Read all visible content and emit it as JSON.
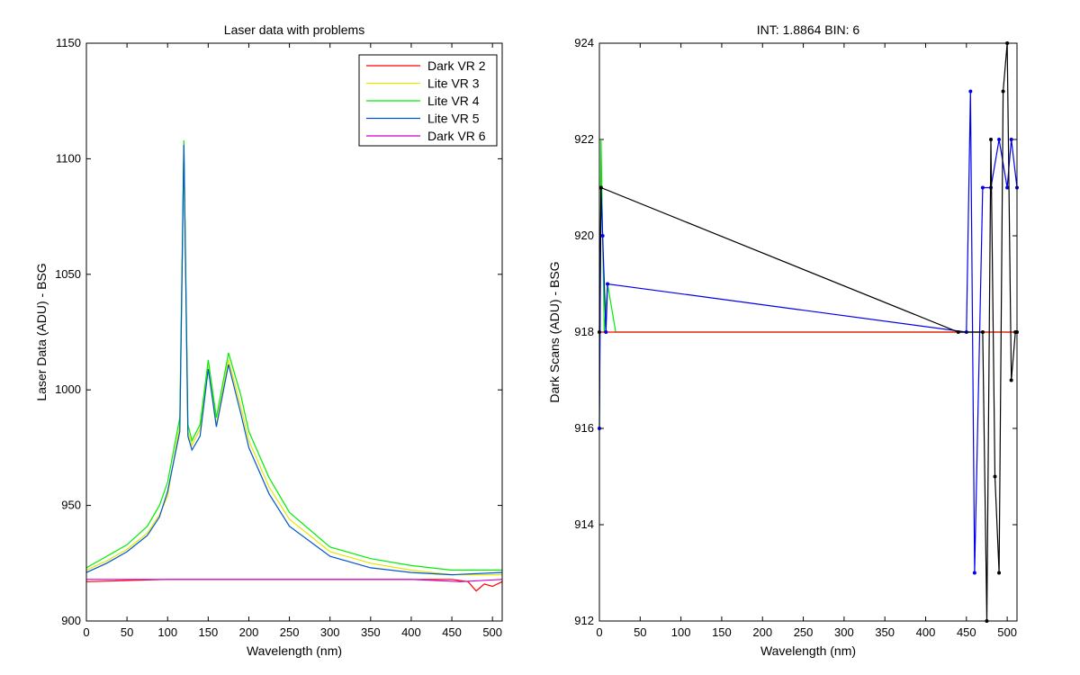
{
  "colors": {
    "red": "#ff0000",
    "yellow": "#e6e600",
    "green": "#00ee00",
    "blue": "#0055cc",
    "magenta": "#cc00cc",
    "dark_blue": "#0000ee",
    "black": "#000000"
  },
  "chart_data": [
    {
      "type": "line",
      "title": "Laser data with problems",
      "xlabel": "Wavelength (nm)",
      "ylabel": "Laser Data (ADU) - BSG",
      "xlim": [
        0,
        512
      ],
      "ylim": [
        900,
        1150
      ],
      "xticks": [
        0,
        50,
        100,
        150,
        200,
        250,
        300,
        350,
        400,
        450,
        500
      ],
      "yticks": [
        900,
        950,
        1000,
        1050,
        1100,
        1150
      ],
      "legend_position": "top-right",
      "series": [
        {
          "name": "Dark VR 2",
          "color": "red",
          "x": [
            0,
            100,
            200,
            300,
            400,
            450,
            470,
            480,
            490,
            500,
            512
          ],
          "y": [
            917,
            918,
            918,
            918,
            918,
            918,
            917,
            913,
            916,
            915,
            917
          ]
        },
        {
          "name": "Lite VR 3",
          "color": "yellow",
          "x": [
            0,
            25,
            50,
            75,
            90,
            100,
            115,
            120,
            125,
            130,
            140,
            150,
            160,
            175,
            190,
            200,
            225,
            250,
            300,
            350,
            400,
            450,
            512
          ],
          "y": [
            922,
            926,
            931,
            938,
            946,
            954,
            985,
            1105,
            982,
            976,
            983,
            1010,
            985,
            1013,
            993,
            978,
            958,
            944,
            930,
            925,
            922,
            920,
            920
          ]
        },
        {
          "name": "Lite VR 4",
          "color": "green",
          "x": [
            0,
            25,
            50,
            75,
            90,
            100,
            115,
            120,
            125,
            130,
            140,
            150,
            160,
            175,
            190,
            200,
            225,
            250,
            300,
            350,
            400,
            450,
            512
          ],
          "y": [
            923,
            928,
            933,
            941,
            950,
            960,
            988,
            1108,
            985,
            978,
            985,
            1013,
            988,
            1016,
            998,
            982,
            962,
            947,
            932,
            927,
            924,
            922,
            922
          ]
        },
        {
          "name": "Lite VR 5",
          "color": "blue",
          "x": [
            0,
            25,
            50,
            75,
            90,
            100,
            115,
            120,
            125,
            130,
            140,
            150,
            160,
            175,
            190,
            200,
            225,
            250,
            300,
            350,
            400,
            450,
            512
          ],
          "y": [
            921,
            925,
            930,
            937,
            945,
            956,
            982,
            1106,
            980,
            974,
            980,
            1009,
            984,
            1011,
            990,
            975,
            955,
            941,
            928,
            923,
            921,
            920,
            921
          ]
        },
        {
          "name": "Dark VR 6",
          "color": "magenta",
          "x": [
            0,
            100,
            200,
            300,
            400,
            460,
            512
          ],
          "y": [
            918,
            918,
            918,
            918,
            918,
            917,
            918
          ]
        }
      ]
    },
    {
      "type": "line",
      "title": "INT: 1.8864    BIN: 6",
      "xlabel": "Wavelength (nm)",
      "ylabel": "Dark Scans (ADU) - BSG",
      "xlim": [
        0,
        512
      ],
      "ylim": [
        912,
        924
      ],
      "xticks": [
        0,
        50,
        100,
        150,
        200,
        250,
        300,
        350,
        400,
        450,
        500
      ],
      "yticks": [
        912,
        914,
        916,
        918,
        920,
        922,
        924
      ],
      "series": [
        {
          "color": "green",
          "x": [
            0,
            2,
            4,
            6,
            10,
            20,
            60,
            100,
            150,
            200,
            250,
            290,
            320,
            350,
            400,
            440,
            512
          ],
          "y": [
            916,
            922,
            920,
            918,
            919,
            918,
            918,
            918,
            918,
            918,
            918,
            918,
            918,
            918,
            918,
            918,
            918
          ]
        },
        {
          "color": "red",
          "x": [
            0,
            20,
            100,
            200,
            300,
            400,
            512
          ],
          "y": [
            918,
            918,
            918,
            918,
            918,
            918,
            918
          ]
        },
        {
          "color": "dark_blue",
          "x": [
            0,
            2,
            4,
            8,
            10,
            450,
            455,
            460,
            470,
            480,
            490,
            500,
            505,
            512
          ],
          "y": [
            916,
            921,
            920,
            918,
            919,
            918,
            923,
            913,
            921,
            921,
            922,
            921,
            922,
            921
          ]
        },
        {
          "color": "black",
          "x": [
            0,
            2,
            440,
            470,
            475,
            480,
            485,
            490,
            495,
            500,
            505,
            510,
            512
          ],
          "y": [
            918,
            921,
            918,
            918,
            912,
            922,
            915,
            913,
            923,
            924,
            917,
            918,
            918
          ]
        }
      ]
    }
  ]
}
